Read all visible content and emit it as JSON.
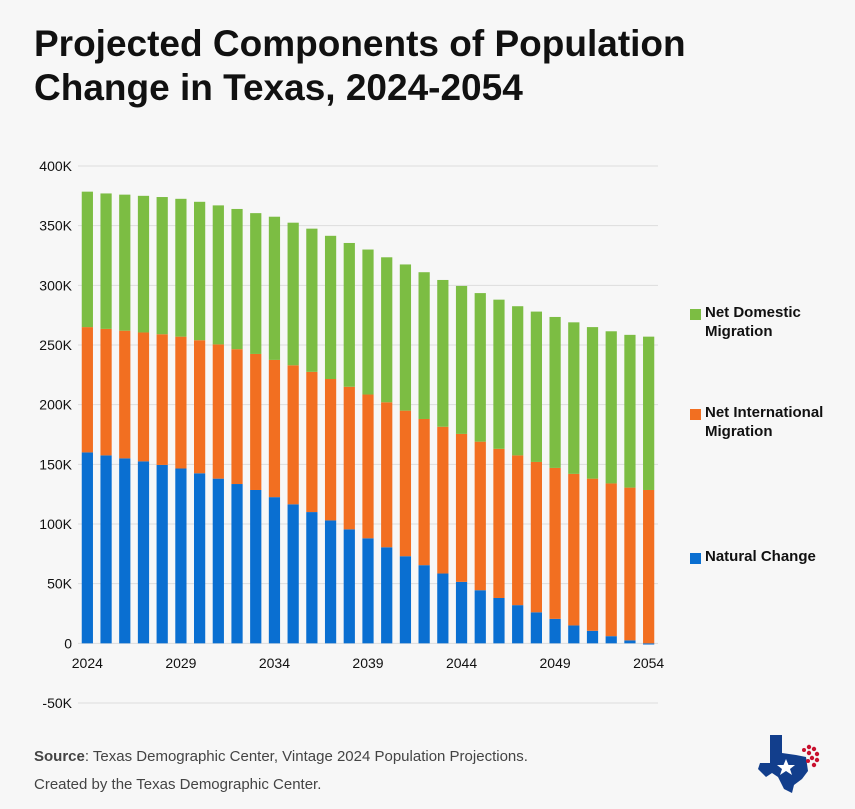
{
  "chart_data": {
    "type": "bar",
    "stacked": true,
    "title": "Projected Components of Population Change in Texas, 2024-2054",
    "x": [
      2024,
      2025,
      2026,
      2027,
      2028,
      2029,
      2030,
      2031,
      2032,
      2033,
      2034,
      2035,
      2036,
      2037,
      2038,
      2039,
      2040,
      2041,
      2042,
      2043,
      2044,
      2045,
      2046,
      2047,
      2048,
      2049,
      2050,
      2051,
      2052,
      2053,
      2054
    ],
    "xticks": [
      "2024",
      "2029",
      "2034",
      "2039",
      "2044",
      "2049",
      "2054"
    ],
    "yticks": [
      "400K",
      "350K",
      "300K",
      "250K",
      "200K",
      "150K",
      "100K",
      "50K",
      "0",
      "-50K"
    ],
    "ylim": [
      -50000,
      400000
    ],
    "series": [
      {
        "name": "Natural Change",
        "color": "#0a6fd1",
        "values": [
          160000,
          157500,
          155000,
          152500,
          149500,
          146500,
          142500,
          138000,
          133500,
          128500,
          122500,
          116500,
          110000,
          103000,
          95500,
          88000,
          80500,
          73000,
          65500,
          58500,
          51500,
          44500,
          38000,
          32000,
          26000,
          20500,
          15000,
          10500,
          6000,
          2500,
          -1000
        ]
      },
      {
        "name": "Net International Migration",
        "color": "#f26f21",
        "values": [
          105000,
          106000,
          107000,
          108000,
          109500,
          110500,
          111500,
          112500,
          113000,
          114000,
          115000,
          116500,
          117500,
          118500,
          119500,
          120500,
          121500,
          122000,
          122500,
          123000,
          124000,
          124500,
          125000,
          125500,
          126000,
          126500,
          127000,
          127500,
          128000,
          128000,
          128500
        ]
      },
      {
        "name": "Net Domestic Migration",
        "color": "#7cbd43",
        "values": [
          113500,
          113500,
          114000,
          114500,
          115000,
          115500,
          116000,
          116500,
          117500,
          118000,
          120000,
          119500,
          120000,
          120000,
          120500,
          121500,
          121500,
          122500,
          123000,
          123000,
          124000,
          124500,
          125000,
          125000,
          126000,
          126500,
          127000,
          127000,
          127500,
          128000,
          128500
        ]
      }
    ],
    "legend_position": "right",
    "grid": true
  },
  "legend": [
    {
      "label": "Net Domestic Migration",
      "color": "#7cbd43"
    },
    {
      "label": "Net International Migration",
      "color": "#f26f21"
    },
    {
      "label": "Natural Change",
      "color": "#0a6fd1"
    }
  ],
  "footer": {
    "source_label": "Source",
    "source_text": ": Texas Demographic Center, Vintage 2024  Population Projections.",
    "created_by": "Created by the Texas Demographic Center."
  }
}
